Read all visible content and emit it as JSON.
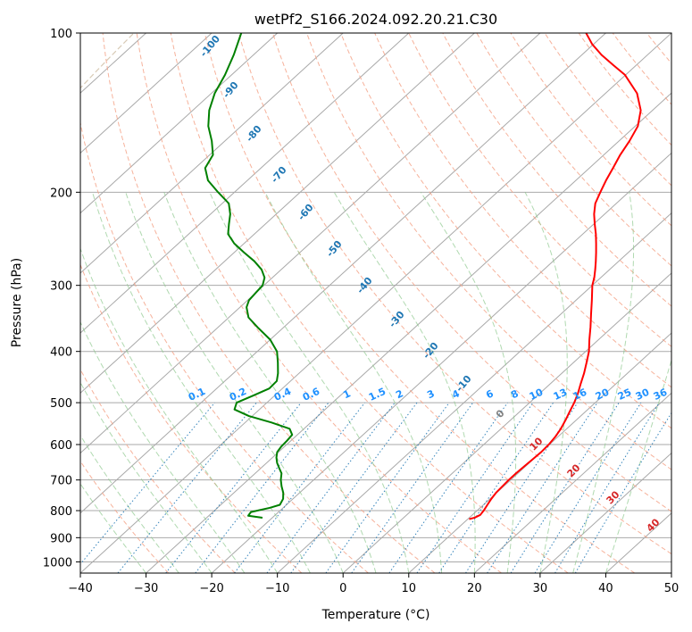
{
  "chart_data": {
    "type": "line",
    "subtype": "skew-t log-p",
    "title": "wetPf2_S166.2024.092.20.21.C30",
    "xlabel": "Temperature (°C)",
    "ylabel": "Pressure (hPa)",
    "xlim": [
      -40,
      50
    ],
    "ylim": [
      1050,
      100
    ],
    "y_scale": "log",
    "grid": true,
    "x_ticks": [
      -40,
      -30,
      -20,
      -10,
      0,
      10,
      20,
      30,
      40,
      50
    ],
    "x_tick_labels": [
      "−40",
      "−30",
      "−20",
      "−10",
      "0",
      "10",
      "20",
      "30",
      "40",
      "50"
    ],
    "y_ticks": [
      100,
      200,
      300,
      400,
      500,
      600,
      700,
      800,
      900,
      1000
    ],
    "y_tick_labels": [
      "100",
      "200",
      "300",
      "400",
      "500",
      "600",
      "700",
      "800",
      "900",
      "1000"
    ],
    "colors": {
      "temperature": "#ff0000",
      "dewpoint": "#008000",
      "isotherm": "#a9a9a9",
      "dry_adiabat": "#f4a58a",
      "moist_adiabat": "#8fc98f",
      "mixing_ratio": "#1f77b4",
      "ice_adiabat": "#c8b496",
      "dry_adiabat_label": "#d62728",
      "moist_adiabat_label": "#1f77b4",
      "mixing_label": "#1e90ff",
      "zero_label": "#808080"
    },
    "series": [
      {
        "key": "temperature",
        "pressure": [
          830,
          825,
          815,
          800,
          780,
          760,
          740,
          720,
          700,
          680,
          660,
          640,
          620,
          600,
          580,
          560,
          540,
          520,
          500,
          480,
          460,
          440,
          420,
          400,
          380,
          360,
          340,
          320,
          300,
          290,
          280,
          270,
          260,
          250,
          240,
          230,
          220,
          210,
          200,
          190,
          180,
          170,
          160,
          150,
          140,
          130,
          120,
          115,
          110,
          105,
          100
        ],
        "temp": [
          10.2,
          10.8,
          11.2,
          11.0,
          10.6,
          10.2,
          9.9,
          9.8,
          9.7,
          9.7,
          9.8,
          9.9,
          10.0,
          9.9,
          9.6,
          9.1,
          8.4,
          7.6,
          6.8,
          5.8,
          4.6,
          3.4,
          2.0,
          0.5,
          -1.4,
          -3.3,
          -5.4,
          -7.6,
          -10.0,
          -11.0,
          -12.2,
          -13.5,
          -14.9,
          -16.4,
          -18.0,
          -19.8,
          -21.6,
          -23.2,
          -24.3,
          -25.4,
          -26.4,
          -27.5,
          -28.4,
          -29.6,
          -31.8,
          -35.2,
          -40.1,
          -43.5,
          -47.0,
          -50.2,
          -53.0
        ]
      },
      {
        "key": "dewpoint",
        "pressure": [
          825,
          818,
          805,
          790,
          780,
          760,
          740,
          720,
          700,
          680,
          665,
          650,
          635,
          620,
          605,
          590,
          575,
          560,
          545,
          530,
          515,
          500,
          485,
          470,
          455,
          440,
          420,
          400,
          380,
          360,
          345,
          330,
          320,
          310,
          300,
          290,
          280,
          270,
          260,
          250,
          240,
          230,
          220,
          210,
          200,
          190,
          180,
          170,
          160,
          150,
          140,
          130,
          120,
          110,
          100
        ],
        "dew": [
          -21.5,
          -24.0,
          -24.2,
          -22.0,
          -21.0,
          -21.5,
          -22.5,
          -23.8,
          -25.0,
          -26.0,
          -27.2,
          -28.4,
          -29.4,
          -30.2,
          -30.5,
          -30.6,
          -30.8,
          -32.2,
          -36.0,
          -40.5,
          -43.8,
          -44.6,
          -43.3,
          -42.0,
          -42.1,
          -43.2,
          -45.0,
          -47.0,
          -50.0,
          -54.0,
          -57.0,
          -59.0,
          -59.8,
          -60.0,
          -60.2,
          -61.2,
          -63.0,
          -65.5,
          -68.5,
          -71.5,
          -74.0,
          -75.5,
          -77.0,
          -79.0,
          -82.5,
          -86.0,
          -88.5,
          -89.5,
          -92.0,
          -95.0,
          -97.5,
          -99.5,
          -101.0,
          -103.0,
          -105.5
        ]
      }
    ],
    "dry_adiabat_labels": [
      "10",
      "20",
      "30",
      "40"
    ],
    "moist_adiabat_labels": [
      "-100",
      "-90",
      "-80",
      "-70",
      "-60",
      "-50",
      "-40",
      "-30",
      "-20",
      "-10",
      "0"
    ],
    "mixing_ratio_labels": [
      "0.1",
      "0.2",
      "0.4",
      "0.6",
      "1",
      "1.5",
      "2",
      "3",
      "4",
      "6",
      "8",
      "10",
      "13",
      "16",
      "20",
      "25",
      "30",
      "36"
    ]
  }
}
